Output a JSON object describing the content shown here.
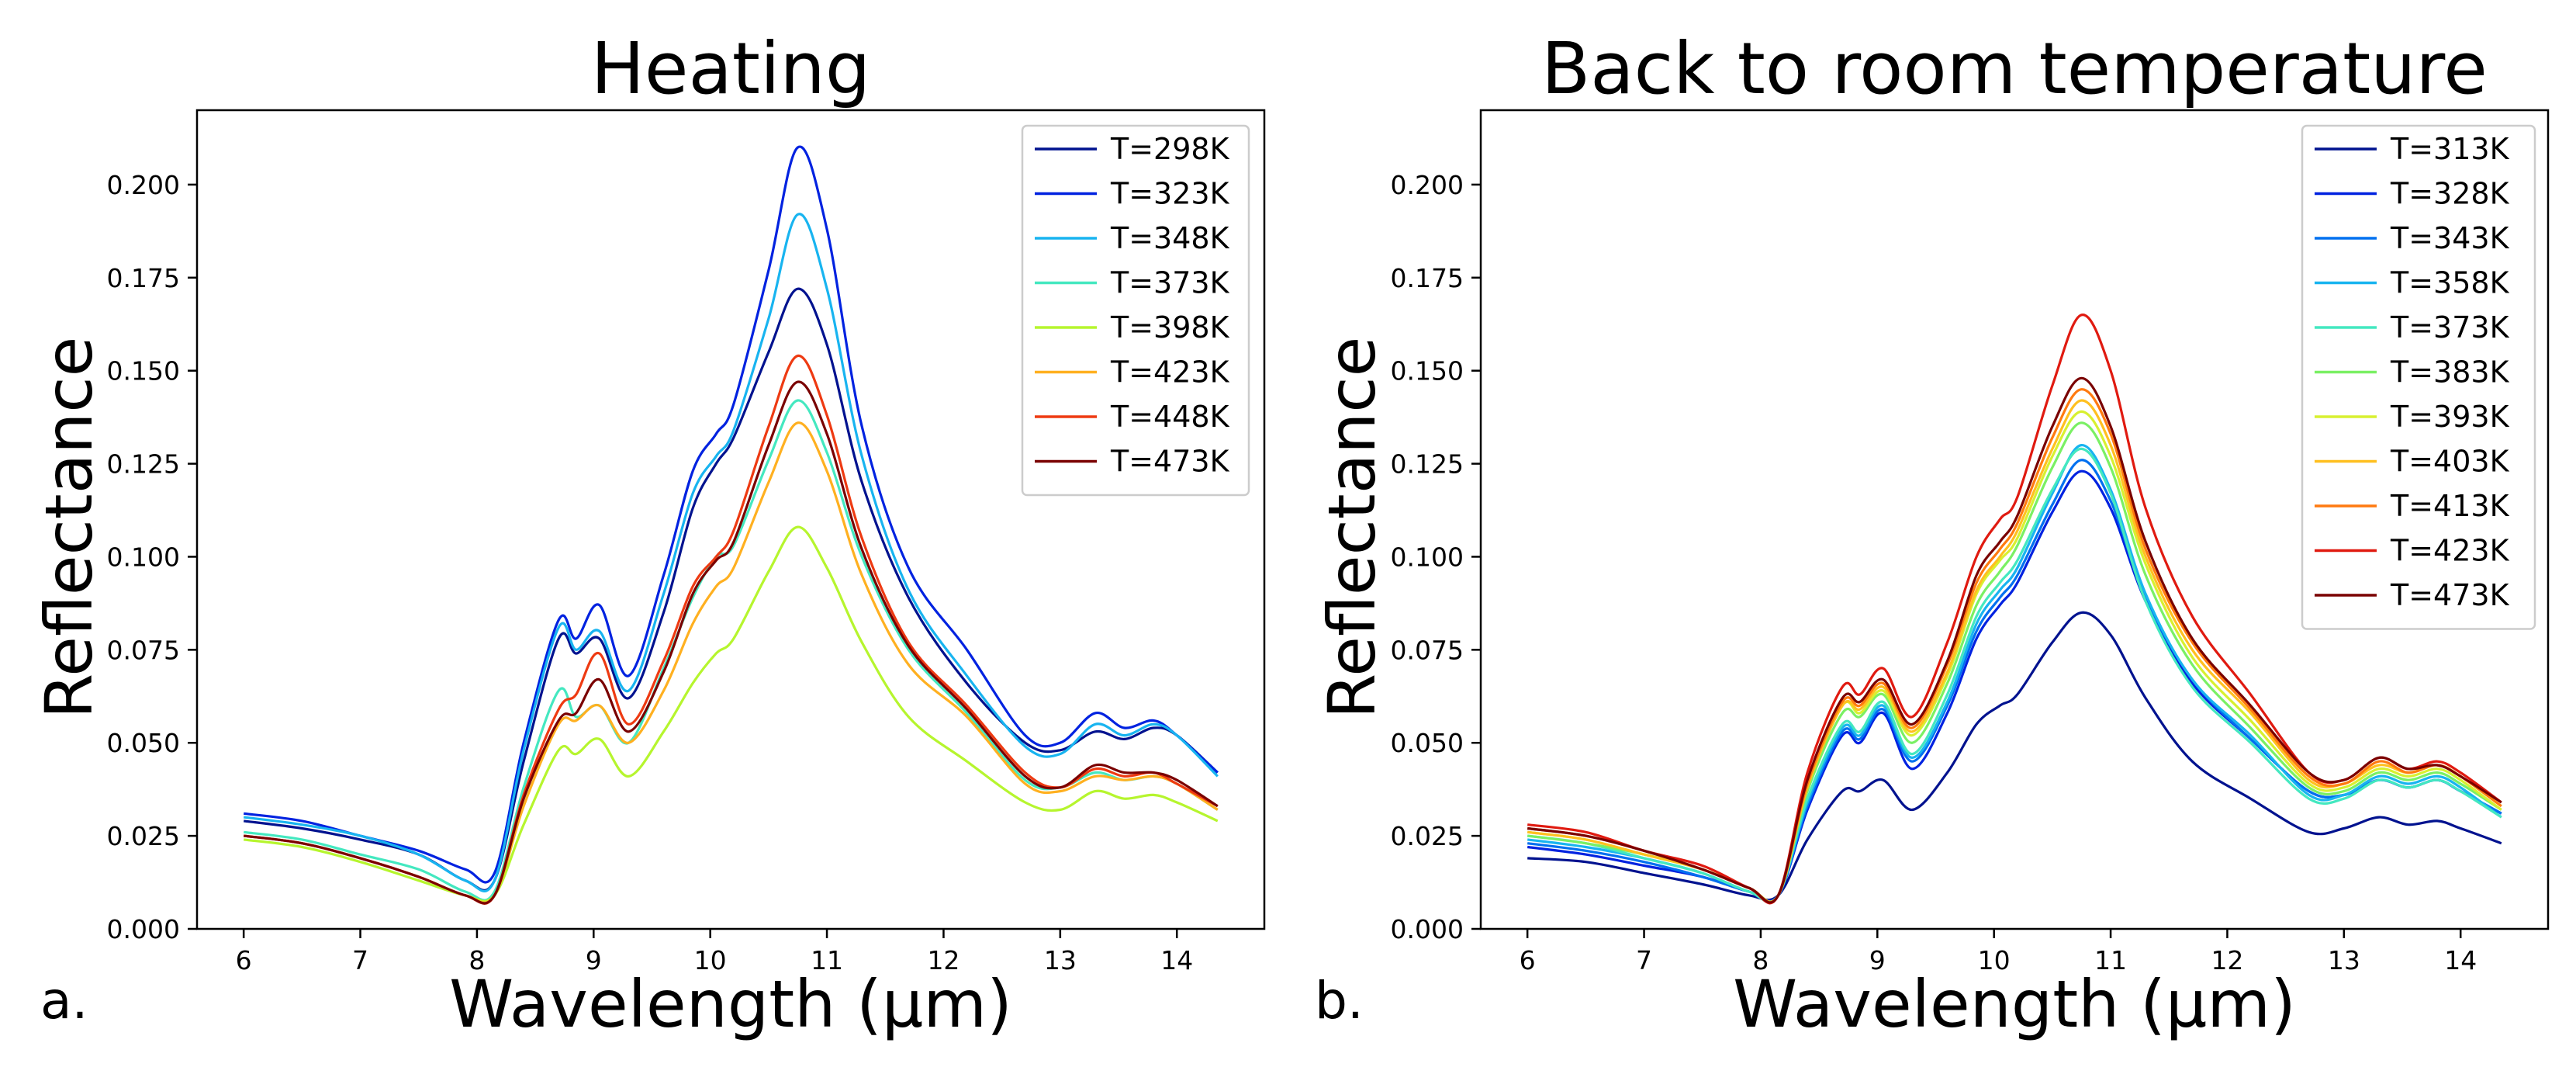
{
  "chart_data": [
    {
      "type": "line",
      "title": "Heating",
      "xlabel": "Wavelength (μm)",
      "ylabel": "Reflectance",
      "panel_label": "a.",
      "xlim": [
        5.6,
        14.75
      ],
      "ylim": [
        0.0,
        0.22
      ],
      "xticks": [
        6,
        7,
        8,
        9,
        10,
        11,
        12,
        13,
        14
      ],
      "yticks": [
        0.0,
        0.025,
        0.05,
        0.075,
        0.1,
        0.125,
        0.15,
        0.175,
        0.2
      ],
      "ytick_labels": [
        "0.000",
        "0.025",
        "0.050",
        "0.075",
        "0.100",
        "0.125",
        "0.150",
        "0.175",
        "0.200"
      ],
      "legend_position": "top-right",
      "x": [
        6.0,
        6.5,
        7.0,
        7.5,
        7.9,
        8.15,
        8.4,
        8.7,
        8.85,
        9.05,
        9.3,
        9.6,
        9.85,
        10.05,
        10.2,
        10.5,
        10.75,
        11.0,
        11.3,
        11.7,
        12.2,
        12.7,
        13.0,
        13.3,
        13.55,
        13.8,
        14.0,
        14.35
      ],
      "series": [
        {
          "name": "T=298K",
          "color": "#00128f",
          "values": [
            0.029,
            0.027,
            0.024,
            0.02,
            0.013,
            0.013,
            0.045,
            0.078,
            0.074,
            0.078,
            0.062,
            0.085,
            0.113,
            0.125,
            0.132,
            0.155,
            0.172,
            0.157,
            0.12,
            0.089,
            0.066,
            0.05,
            0.048,
            0.053,
            0.051,
            0.054,
            0.052,
            0.042
          ]
        },
        {
          "name": "T=323K",
          "color": "#0022e0",
          "values": [
            0.031,
            0.029,
            0.025,
            0.021,
            0.016,
            0.015,
            0.05,
            0.083,
            0.078,
            0.087,
            0.068,
            0.095,
            0.123,
            0.133,
            0.141,
            0.177,
            0.21,
            0.188,
            0.135,
            0.097,
            0.075,
            0.052,
            0.05,
            0.058,
            0.054,
            0.056,
            0.052,
            0.042
          ]
        },
        {
          "name": "T=348K",
          "color": "#18b4f0",
          "values": [
            0.03,
            0.028,
            0.025,
            0.02,
            0.013,
            0.013,
            0.048,
            0.081,
            0.075,
            0.08,
            0.064,
            0.09,
            0.117,
            0.127,
            0.134,
            0.164,
            0.192,
            0.172,
            0.127,
            0.091,
            0.068,
            0.049,
            0.047,
            0.055,
            0.052,
            0.055,
            0.052,
            0.041
          ]
        },
        {
          "name": "T=373K",
          "color": "#44e8c0",
          "values": [
            0.026,
            0.024,
            0.02,
            0.016,
            0.01,
            0.01,
            0.038,
            0.064,
            0.057,
            0.06,
            0.05,
            0.07,
            0.089,
            0.1,
            0.103,
            0.126,
            0.142,
            0.128,
            0.1,
            0.075,
            0.058,
            0.04,
            0.038,
            0.042,
            0.04,
            0.041,
            0.039,
            0.032
          ]
        },
        {
          "name": "T=398K",
          "color": "#b6f52e",
          "values": [
            0.024,
            0.022,
            0.018,
            0.013,
            0.009,
            0.009,
            0.028,
            0.048,
            0.047,
            0.051,
            0.041,
            0.053,
            0.066,
            0.074,
            0.078,
            0.096,
            0.108,
            0.097,
            0.077,
            0.057,
            0.045,
            0.034,
            0.032,
            0.037,
            0.035,
            0.036,
            0.034,
            0.029
          ]
        },
        {
          "name": "T=423K",
          "color": "#ffb020",
          "values": [
            0.025,
            0.023,
            0.019,
            0.014,
            0.009,
            0.009,
            0.033,
            0.055,
            0.056,
            0.06,
            0.05,
            0.064,
            0.082,
            0.092,
            0.097,
            0.12,
            0.136,
            0.123,
            0.095,
            0.071,
            0.057,
            0.039,
            0.037,
            0.041,
            0.04,
            0.041,
            0.039,
            0.032
          ]
        },
        {
          "name": "T=448K",
          "color": "#ee3a12",
          "values": [
            0.025,
            0.023,
            0.019,
            0.014,
            0.009,
            0.009,
            0.036,
            0.059,
            0.063,
            0.074,
            0.055,
            0.072,
            0.092,
            0.1,
            0.107,
            0.135,
            0.154,
            0.138,
            0.105,
            0.077,
            0.06,
            0.042,
            0.038,
            0.043,
            0.041,
            0.042,
            0.039,
            0.033
          ]
        },
        {
          "name": "T=473K",
          "color": "#7a0000",
          "values": [
            0.025,
            0.023,
            0.019,
            0.014,
            0.009,
            0.009,
            0.035,
            0.056,
            0.058,
            0.067,
            0.053,
            0.069,
            0.09,
            0.099,
            0.104,
            0.13,
            0.147,
            0.133,
            0.102,
            0.076,
            0.059,
            0.041,
            0.038,
            0.044,
            0.042,
            0.042,
            0.04,
            0.033
          ]
        }
      ]
    },
    {
      "type": "line",
      "title": "Back to room temperature",
      "xlabel": "Wavelength (μm)",
      "ylabel": "Reflectance",
      "panel_label": "b.",
      "xlim": [
        5.6,
        14.75
      ],
      "ylim": [
        0.0,
        0.22
      ],
      "xticks": [
        6,
        7,
        8,
        9,
        10,
        11,
        12,
        13,
        14
      ],
      "yticks": [
        0.0,
        0.025,
        0.05,
        0.075,
        0.1,
        0.125,
        0.15,
        0.175,
        0.2
      ],
      "ytick_labels": [
        "0.000",
        "0.025",
        "0.050",
        "0.075",
        "0.100",
        "0.125",
        "0.150",
        "0.175",
        "0.200"
      ],
      "legend_position": "top-right",
      "x": [
        6.0,
        6.5,
        7.0,
        7.5,
        7.9,
        8.15,
        8.4,
        8.7,
        8.85,
        9.05,
        9.3,
        9.6,
        9.85,
        10.05,
        10.2,
        10.5,
        10.75,
        11.0,
        11.3,
        11.7,
        12.2,
        12.7,
        13.0,
        13.3,
        13.55,
        13.8,
        14.0,
        14.35
      ],
      "series": [
        {
          "name": "T=313K",
          "color": "#00128f",
          "values": [
            0.019,
            0.018,
            0.015,
            0.012,
            0.009,
            0.009,
            0.024,
            0.037,
            0.037,
            0.04,
            0.032,
            0.042,
            0.055,
            0.06,
            0.063,
            0.077,
            0.085,
            0.079,
            0.062,
            0.045,
            0.035,
            0.026,
            0.027,
            0.03,
            0.028,
            0.029,
            0.027,
            0.023
          ]
        },
        {
          "name": "T=328K",
          "color": "#0022e0",
          "values": [
            0.022,
            0.02,
            0.017,
            0.014,
            0.01,
            0.009,
            0.032,
            0.052,
            0.05,
            0.058,
            0.043,
            0.058,
            0.078,
            0.087,
            0.093,
            0.112,
            0.123,
            0.113,
            0.088,
            0.066,
            0.051,
            0.037,
            0.036,
            0.04,
            0.038,
            0.04,
            0.037,
            0.031
          ]
        },
        {
          "name": "T=343K",
          "color": "#0070f0",
          "values": [
            0.023,
            0.021,
            0.018,
            0.014,
            0.01,
            0.009,
            0.033,
            0.053,
            0.051,
            0.059,
            0.045,
            0.06,
            0.08,
            0.089,
            0.095,
            0.114,
            0.126,
            0.115,
            0.089,
            0.067,
            0.051,
            0.037,
            0.036,
            0.04,
            0.038,
            0.04,
            0.037,
            0.031
          ]
        },
        {
          "name": "T=358K",
          "color": "#18b4f0",
          "values": [
            0.024,
            0.022,
            0.019,
            0.015,
            0.01,
            0.009,
            0.034,
            0.054,
            0.052,
            0.06,
            0.046,
            0.061,
            0.082,
            0.091,
            0.097,
            0.117,
            0.13,
            0.118,
            0.09,
            0.067,
            0.052,
            0.036,
            0.036,
            0.041,
            0.039,
            0.041,
            0.038,
            0.03
          ]
        },
        {
          "name": "T=373K",
          "color": "#44e8c0",
          "values": [
            0.025,
            0.023,
            0.019,
            0.015,
            0.01,
            0.009,
            0.035,
            0.055,
            0.053,
            0.061,
            0.047,
            0.063,
            0.084,
            0.093,
            0.099,
            0.118,
            0.129,
            0.117,
            0.088,
            0.065,
            0.05,
            0.035,
            0.035,
            0.04,
            0.038,
            0.04,
            0.037,
            0.03
          ]
        },
        {
          "name": "T=383K",
          "color": "#7af064",
          "values": [
            0.025,
            0.023,
            0.02,
            0.016,
            0.011,
            0.009,
            0.037,
            0.058,
            0.057,
            0.063,
            0.05,
            0.066,
            0.087,
            0.096,
            0.103,
            0.124,
            0.136,
            0.124,
            0.095,
            0.071,
            0.054,
            0.038,
            0.037,
            0.042,
            0.04,
            0.042,
            0.039,
            0.032
          ]
        },
        {
          "name": "T=393K",
          "color": "#d8f030",
          "values": [
            0.026,
            0.024,
            0.02,
            0.016,
            0.011,
            0.009,
            0.038,
            0.06,
            0.058,
            0.064,
            0.052,
            0.068,
            0.09,
            0.099,
            0.105,
            0.127,
            0.139,
            0.127,
            0.098,
            0.073,
            0.056,
            0.039,
            0.038,
            0.043,
            0.041,
            0.043,
            0.04,
            0.032
          ]
        },
        {
          "name": "T=403K",
          "color": "#ffc020",
          "values": [
            0.026,
            0.024,
            0.02,
            0.016,
            0.011,
            0.009,
            0.038,
            0.06,
            0.059,
            0.065,
            0.053,
            0.069,
            0.091,
            0.1,
            0.107,
            0.129,
            0.142,
            0.13,
            0.1,
            0.075,
            0.058,
            0.04,
            0.039,
            0.044,
            0.042,
            0.044,
            0.041,
            0.033
          ]
        },
        {
          "name": "T=413K",
          "color": "#ff7a10",
          "values": [
            0.027,
            0.025,
            0.021,
            0.016,
            0.011,
            0.009,
            0.039,
            0.061,
            0.06,
            0.066,
            0.054,
            0.071,
            0.093,
            0.102,
            0.109,
            0.132,
            0.145,
            0.133,
            0.102,
            0.077,
            0.059,
            0.041,
            0.039,
            0.045,
            0.042,
            0.044,
            0.041,
            0.033
          ]
        },
        {
          "name": "T=423K",
          "color": "#e01a10",
          "values": [
            0.028,
            0.026,
            0.021,
            0.017,
            0.011,
            0.009,
            0.042,
            0.065,
            0.063,
            0.07,
            0.057,
            0.077,
            0.1,
            0.11,
            0.116,
            0.146,
            0.165,
            0.15,
            0.113,
            0.084,
            0.063,
            0.042,
            0.04,
            0.046,
            0.043,
            0.045,
            0.042,
            0.034
          ]
        },
        {
          "name": "T=473K",
          "color": "#7a0000",
          "values": [
            0.027,
            0.025,
            0.021,
            0.016,
            0.011,
            0.009,
            0.04,
            0.062,
            0.061,
            0.067,
            0.055,
            0.072,
            0.095,
            0.104,
            0.111,
            0.135,
            0.148,
            0.135,
            0.104,
            0.078,
            0.06,
            0.042,
            0.04,
            0.046,
            0.043,
            0.044,
            0.041,
            0.034
          ]
        }
      ]
    }
  ]
}
